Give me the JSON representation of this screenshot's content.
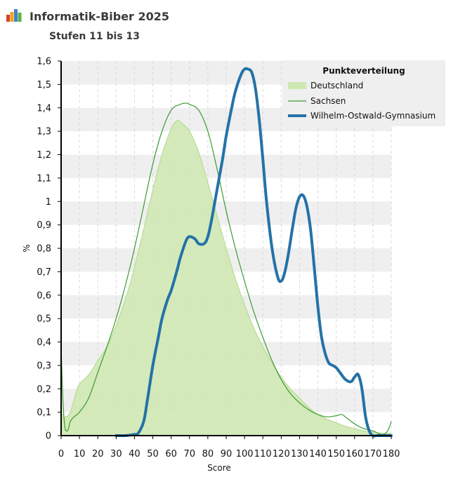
{
  "header": {
    "title": "Informatik-Biber 2025",
    "subtitle": "Stufen 11 bis 13"
  },
  "colors": {
    "deutschland_fill": "#cfe8b2",
    "deutschland_line": "#b7dc95",
    "sachsen": "#3a9a30",
    "gymnasium": "#2472a8",
    "band": "#efefef",
    "legend_bg": "#efefef"
  },
  "chart_data": {
    "type": "area",
    "title": "Informatik-Biber 2025",
    "subtitle": "Stufen 11 bis 13",
    "xlabel": "Score",
    "ylabel": "%",
    "xlim": [
      0,
      180
    ],
    "ylim": [
      0,
      1.6
    ],
    "x_ticks": [
      0,
      10,
      20,
      30,
      40,
      50,
      60,
      70,
      80,
      90,
      100,
      110,
      120,
      130,
      140,
      150,
      160,
      170,
      180
    ],
    "x_tick_labels": [
      "0",
      "10",
      "20",
      "30",
      "40",
      "50",
      "60",
      "70",
      "80",
      "90",
      "100",
      "110",
      "120",
      "130",
      "140",
      "150",
      "160",
      "170",
      "180"
    ],
    "y_ticks": [
      0,
      0.1,
      0.2,
      0.3,
      0.4,
      0.5,
      0.6,
      0.7,
      0.8,
      0.9,
      1,
      1.1,
      1.2,
      1.3,
      1.4,
      1.5,
      1.6
    ],
    "y_tick_labels": [
      "0",
      "0,1",
      "0,2",
      "0,3",
      "0,4",
      "0,5",
      "0,6",
      "0,7",
      "0,8",
      "0,9",
      "1",
      "1,1",
      "1,2",
      "1,3",
      "1,4",
      "1,5",
      "1,6"
    ],
    "legend": {
      "title": "Punkteverteilung",
      "position": "top-right",
      "entries": [
        "Deutschland",
        "Sachsen",
        "Wilhelm-Ostwald-Gymnasium"
      ]
    },
    "series": [
      {
        "name": "Deutschland",
        "style": "area",
        "x": [
          0,
          2,
          5,
          8,
          10,
          15,
          20,
          25,
          30,
          35,
          40,
          45,
          50,
          55,
          60,
          63,
          65,
          70,
          75,
          80,
          85,
          90,
          95,
          100,
          105,
          110,
          115,
          120,
          125,
          130,
          135,
          140,
          145,
          150,
          155,
          160,
          165,
          170,
          175,
          178,
          180
        ],
        "y": [
          0.1,
          0.08,
          0.1,
          0.18,
          0.22,
          0.26,
          0.32,
          0.38,
          0.47,
          0.58,
          0.72,
          0.88,
          1.05,
          1.2,
          1.31,
          1.345,
          1.34,
          1.3,
          1.21,
          1.08,
          0.94,
          0.8,
          0.67,
          0.56,
          0.46,
          0.38,
          0.31,
          0.25,
          0.2,
          0.16,
          0.12,
          0.09,
          0.07,
          0.055,
          0.04,
          0.03,
          0.02,
          0.015,
          0.01,
          0.01,
          0.01
        ]
      },
      {
        "name": "Sachsen",
        "style": "line",
        "x": [
          0,
          1,
          2,
          3,
          4,
          5,
          7,
          10,
          15,
          20,
          25,
          30,
          35,
          40,
          45,
          50,
          55,
          60,
          65,
          68,
          70,
          75,
          80,
          85,
          90,
          95,
          100,
          105,
          110,
          115,
          120,
          125,
          130,
          135,
          140,
          145,
          150,
          153,
          155,
          160,
          165,
          170,
          175,
          178,
          180
        ],
        "y": [
          0.38,
          0.15,
          0.04,
          0.02,
          0.03,
          0.06,
          0.08,
          0.1,
          0.16,
          0.27,
          0.38,
          0.5,
          0.64,
          0.8,
          0.98,
          1.16,
          1.3,
          1.39,
          1.415,
          1.42,
          1.415,
          1.39,
          1.3,
          1.14,
          0.96,
          0.8,
          0.66,
          0.53,
          0.42,
          0.32,
          0.24,
          0.18,
          0.14,
          0.11,
          0.09,
          0.08,
          0.085,
          0.09,
          0.08,
          0.05,
          0.03,
          0.02,
          0.005,
          0.02,
          0.06
        ]
      },
      {
        "name": "Wilhelm-Ostwald-Gymnasium",
        "style": "line-thick",
        "x": [
          30,
          35,
          40,
          42,
          45,
          47,
          50,
          53,
          55,
          58,
          60,
          63,
          65,
          68,
          70,
          73,
          75,
          78,
          80,
          82,
          85,
          88,
          90,
          93,
          95,
          98,
          100,
          102,
          104,
          106,
          108,
          110,
          112,
          115,
          118,
          120,
          122,
          124,
          126,
          128,
          130,
          132,
          134,
          136,
          138,
          140,
          142,
          144,
          146,
          148,
          150,
          152,
          155,
          158,
          160,
          162,
          164,
          166,
          168,
          170,
          172,
          174,
          176,
          178,
          180
        ],
        "y": [
          0,
          0,
          0.005,
          0.01,
          0.06,
          0.15,
          0.3,
          0.42,
          0.5,
          0.58,
          0.62,
          0.7,
          0.76,
          0.83,
          0.85,
          0.84,
          0.82,
          0.82,
          0.85,
          0.92,
          1.05,
          1.18,
          1.28,
          1.4,
          1.47,
          1.54,
          1.565,
          1.565,
          1.55,
          1.48,
          1.35,
          1.18,
          1.0,
          0.8,
          0.68,
          0.66,
          0.7,
          0.78,
          0.88,
          0.97,
          1.02,
          1.025,
          0.98,
          0.88,
          0.72,
          0.55,
          0.42,
          0.35,
          0.31,
          0.3,
          0.29,
          0.27,
          0.24,
          0.23,
          0.25,
          0.26,
          0.2,
          0.08,
          0.02,
          0,
          0,
          0,
          0,
          0,
          0
        ]
      }
    ]
  }
}
